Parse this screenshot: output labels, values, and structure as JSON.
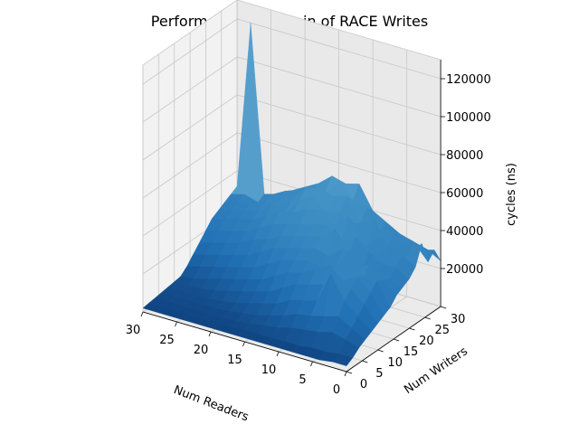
{
  "chart_data": {
    "type": "surface3d",
    "title": "Performance mountain of RACE Writes",
    "xlabel": "Num Readers",
    "ylabel": "Num Writers",
    "zlabel": "cycles (ns)",
    "xlim": [
      0,
      30
    ],
    "ylim": [
      0,
      30
    ],
    "zlim": [
      0,
      130000
    ],
    "x_ticks": [
      0,
      5,
      10,
      15,
      20,
      25,
      30
    ],
    "y_ticks": [
      0,
      5,
      10,
      15,
      20,
      25,
      30
    ],
    "z_ticks": [
      20000,
      40000,
      60000,
      80000,
      100000,
      120000
    ],
    "colormap": "Blues_r",
    "grid": true,
    "readers": [
      0,
      2,
      4,
      6,
      8,
      10,
      12,
      14,
      16,
      18,
      20,
      22,
      24,
      26,
      28,
      30
    ],
    "writers": [
      0,
      2,
      4,
      6,
      8,
      10,
      12,
      14,
      16,
      18,
      20,
      22,
      24,
      26,
      28,
      30
    ],
    "cycles": [
      [
        3000,
        5000,
        8000,
        10000,
        12000,
        14000,
        16000,
        18000,
        22000,
        24000,
        26000,
        30000,
        40000,
        28000,
        32000,
        24000
      ],
      [
        3000,
        5000,
        10000,
        14000,
        18000,
        22000,
        26000,
        30000,
        28000,
        26000,
        30000,
        34000,
        32000,
        36000,
        30000,
        28000
      ],
      [
        2000,
        4000,
        12000,
        18000,
        24000,
        28000,
        32000,
        30000,
        34000,
        28000,
        30000,
        36000,
        28000,
        32000,
        34000,
        30000
      ],
      [
        2000,
        4000,
        10000,
        16000,
        36000,
        30000,
        28000,
        42000,
        30000,
        26000,
        34000,
        30000,
        38000,
        30000,
        36000,
        32000
      ],
      [
        2000,
        3000,
        9000,
        14000,
        20000,
        26000,
        34000,
        30000,
        38000,
        32000,
        40000,
        34000,
        30000,
        42000,
        34000,
        36000
      ],
      [
        2000,
        3000,
        8000,
        13000,
        18000,
        24000,
        30000,
        28000,
        32000,
        44000,
        36000,
        46000,
        40000,
        38000,
        44000,
        40000
      ],
      [
        2000,
        3000,
        6000,
        10000,
        16000,
        22000,
        26000,
        30000,
        34000,
        38000,
        42000,
        40000,
        44000,
        50000,
        46000,
        52000
      ],
      [
        2000,
        3000,
        5000,
        8000,
        12000,
        18000,
        24000,
        28000,
        32000,
        36000,
        40000,
        46000,
        42000,
        48000,
        54000,
        50000
      ],
      [
        2000,
        3000,
        4000,
        6000,
        10000,
        14000,
        20000,
        26000,
        30000,
        34000,
        38000,
        44000,
        48000,
        50000,
        46000,
        52000
      ],
      [
        2000,
        2500,
        3000,
        5000,
        8000,
        12000,
        16000,
        22000,
        28000,
        32000,
        36000,
        40000,
        44000,
        48000,
        44000,
        46000
      ],
      [
        2000,
        2500,
        3000,
        4000,
        6000,
        10000,
        14000,
        18000,
        24000,
        28000,
        34000,
        38000,
        36000,
        40000,
        38000,
        42000
      ],
      [
        2000,
        2500,
        3000,
        3500,
        5000,
        8000,
        12000,
        16000,
        20000,
        26000,
        30000,
        34000,
        38000,
        36000,
        40000,
        38000
      ],
      [
        2000,
        2500,
        3000,
        3500,
        4000,
        6000,
        10000,
        14000,
        18000,
        22000,
        26000,
        30000,
        32000,
        34000,
        36000,
        34000
      ],
      [
        2000,
        2500,
        3000,
        3500,
        4000,
        5000,
        8000,
        12000,
        16000,
        20000,
        24000,
        28000,
        30000,
        32000,
        30000,
        32000
      ],
      [
        2000,
        2500,
        3000,
        3500,
        4000,
        4500,
        6000,
        10000,
        14000,
        18000,
        22000,
        26000,
        28000,
        30000,
        32000,
        120000
      ],
      [
        2000,
        2500,
        3000,
        3500,
        4000,
        4500,
        5000,
        8000,
        12000,
        16000,
        20000,
        24000,
        26000,
        28000,
        30000,
        32000
      ]
    ]
  }
}
